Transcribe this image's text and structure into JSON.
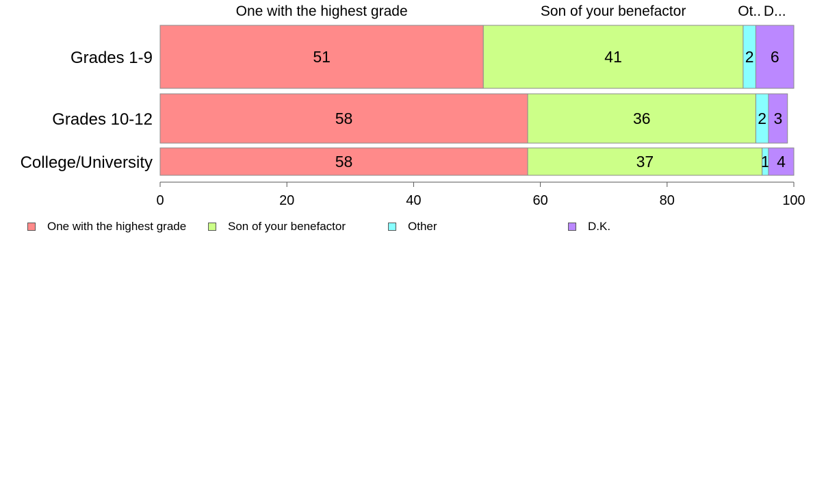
{
  "chart_data": {
    "type": "bar",
    "orientation": "horizontal",
    "stacked": true,
    "categories": [
      "Grades 1-9",
      "Grades 10-12",
      "College/University"
    ],
    "series": [
      {
        "name": "One with the highest grade",
        "values": [
          51,
          58,
          58
        ],
        "color": "#ff8a8a"
      },
      {
        "name": "Son of your benefactor",
        "values": [
          41,
          36,
          37
        ],
        "color": "#ccff88"
      },
      {
        "name": "Other",
        "values": [
          2,
          2,
          1
        ],
        "color": "#88ffff"
      },
      {
        "name": "D.K.",
        "values": [
          6,
          3,
          4
        ],
        "color": "#bb88ff"
      }
    ],
    "top_labels": [
      "One with the highest grade",
      "Son of your benefactor",
      "Ot..",
      "D..."
    ],
    "xlim": [
      0,
      100
    ],
    "xticks": [
      "0",
      "20",
      "40",
      "60",
      "80",
      "100"
    ],
    "grid": false,
    "legend_position": "bottom-left"
  }
}
